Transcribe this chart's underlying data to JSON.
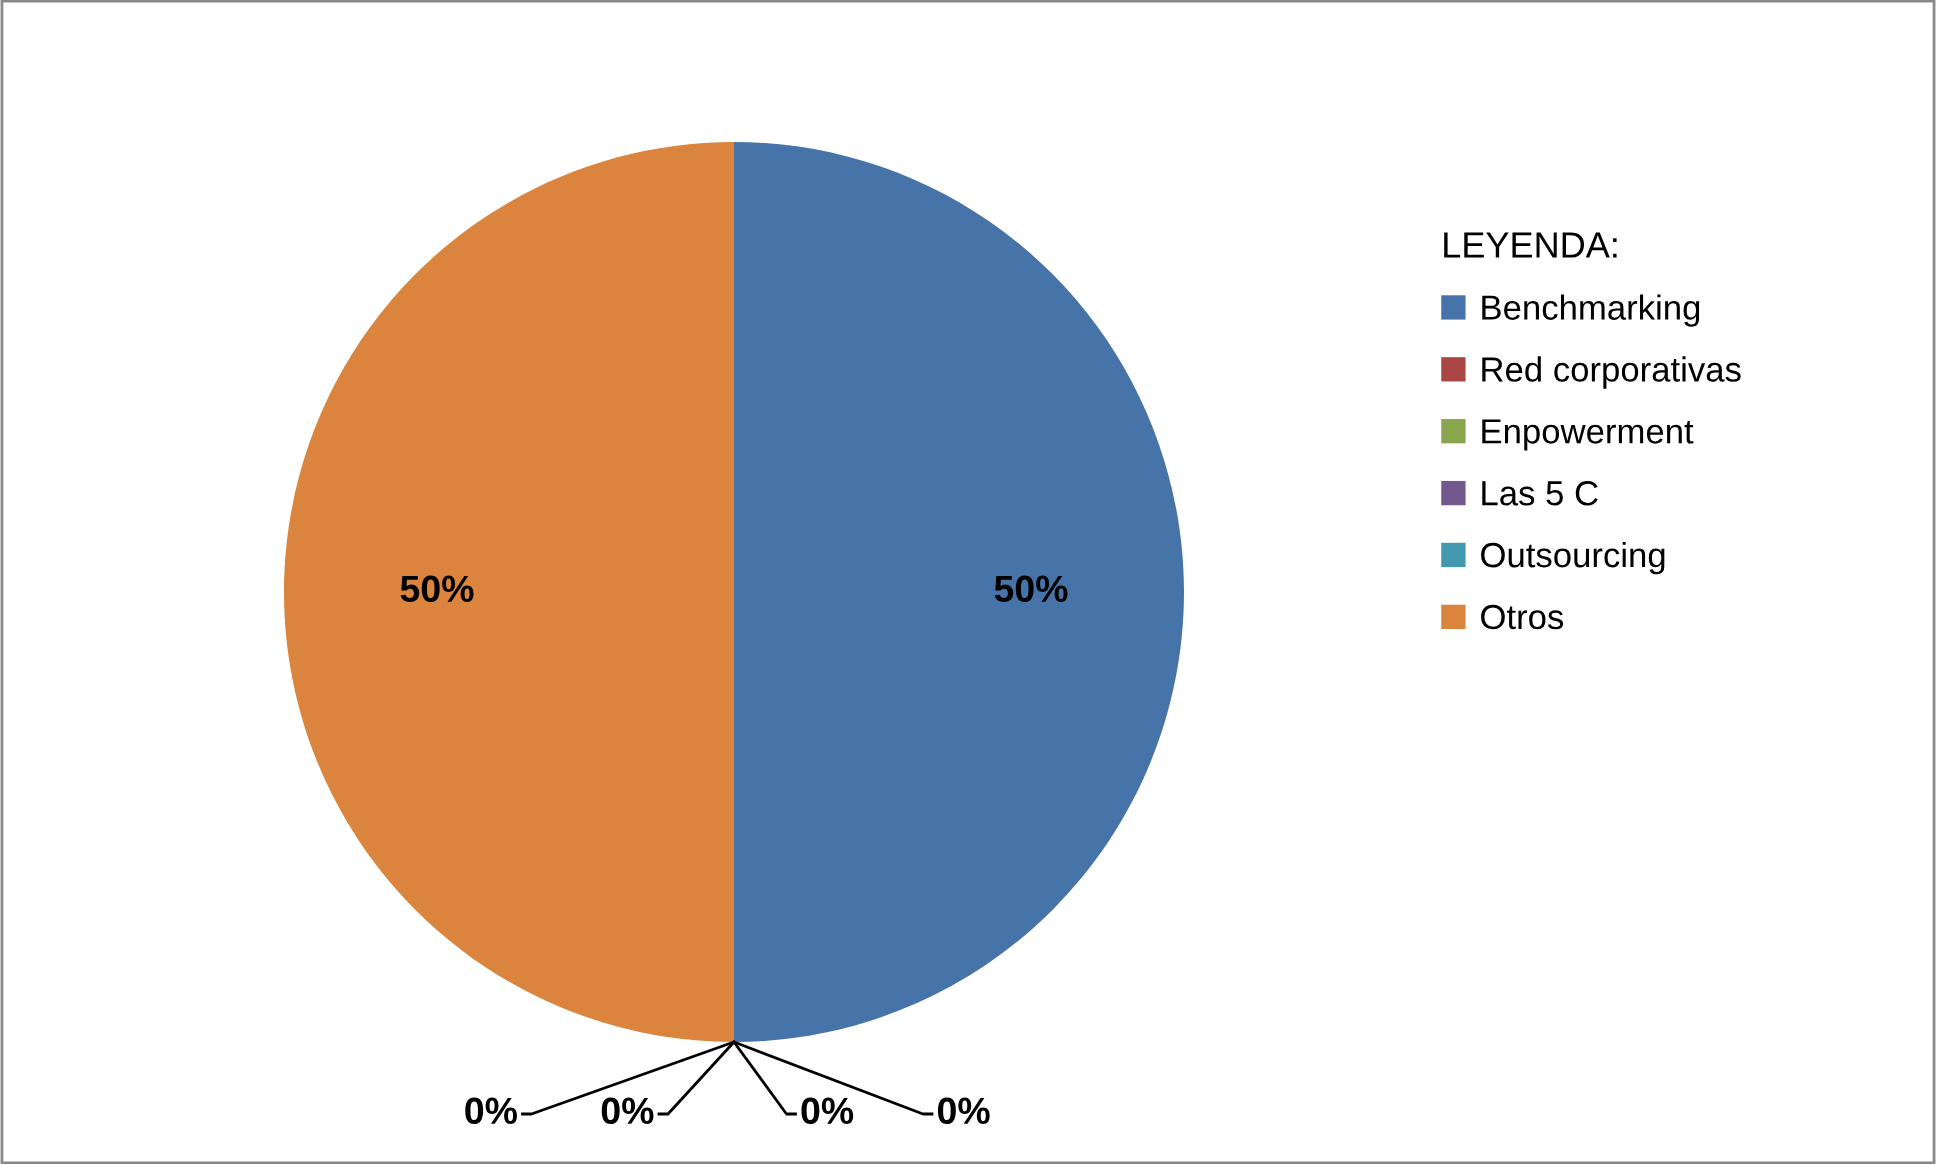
{
  "chart_data": {
    "type": "pie",
    "legend_title": "LEYENDA:",
    "legend": "right",
    "value_labels": [
      "50%",
      "0%",
      "0%",
      "0%",
      "0%",
      "50%"
    ],
    "categories": [
      "Benchmarking",
      "Red corporativas",
      "Enpowerment",
      "Las 5 C",
      "Outsourcing",
      "Otros"
    ],
    "values": [
      50,
      0,
      0,
      0,
      0,
      50
    ],
    "colors": [
      "#4674a8",
      "#aa4643",
      "#89a54e",
      "#71588f",
      "#4198af",
      "#db843d"
    ]
  }
}
